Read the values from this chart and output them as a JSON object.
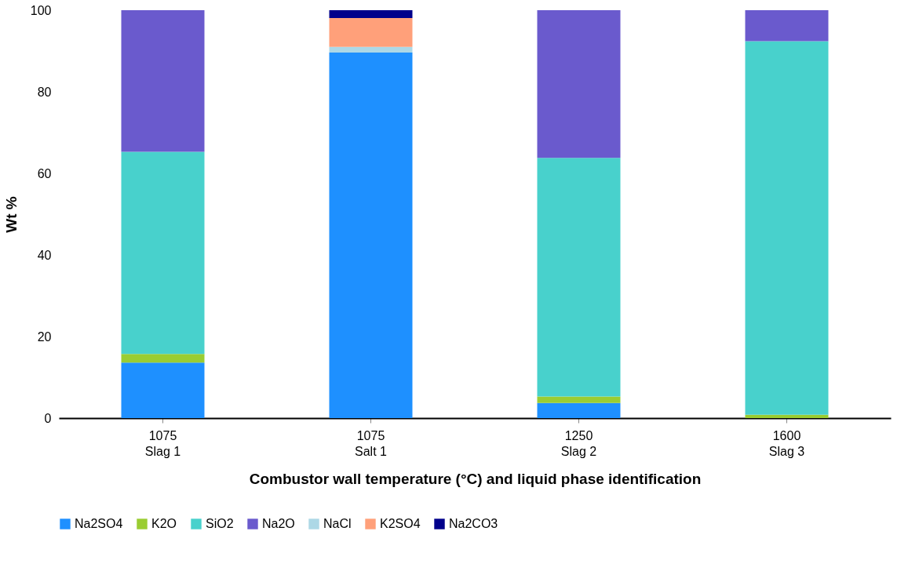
{
  "chart_data": {
    "type": "bar",
    "stacked": true,
    "xlabel": "Combustor wall temperature (°C) and liquid phase identification",
    "ylabel": "Wt %",
    "categories": [
      "1075\nSlag 1",
      "1075\nSalt 1",
      "1250\nSlag 2",
      "1600\nSlag 3"
    ],
    "series": [
      {
        "name": "Na2SO4",
        "color": "#1e90ff",
        "values": [
          13.6,
          89.6,
          3.7,
          0
        ]
      },
      {
        "name": "K2O",
        "color": "#9acd32",
        "values": [
          2.1,
          0,
          1.6,
          0.8
        ]
      },
      {
        "name": "SiO2",
        "color": "#48d1cc",
        "values": [
          49.6,
          0,
          58.5,
          91.6
        ]
      },
      {
        "name": "Na2O",
        "color": "#6a5acd",
        "values": [
          34.7,
          0,
          36.2,
          7.6
        ]
      },
      {
        "name": "NaCl",
        "color": "#add8e6",
        "values": [
          0,
          1.4,
          0,
          0
        ]
      },
      {
        "name": "K2SO4",
        "color": "#ffa07a",
        "values": [
          0,
          7.1,
          0,
          0
        ]
      },
      {
        "name": "Na2CO3",
        "color": "#00008b",
        "values": [
          0,
          1.9,
          0,
          0
        ]
      }
    ],
    "ylim": [
      0,
      100
    ],
    "yticks": [
      0,
      20,
      40,
      60,
      80,
      100
    ],
    "grid": false,
    "legend": "bottom"
  }
}
